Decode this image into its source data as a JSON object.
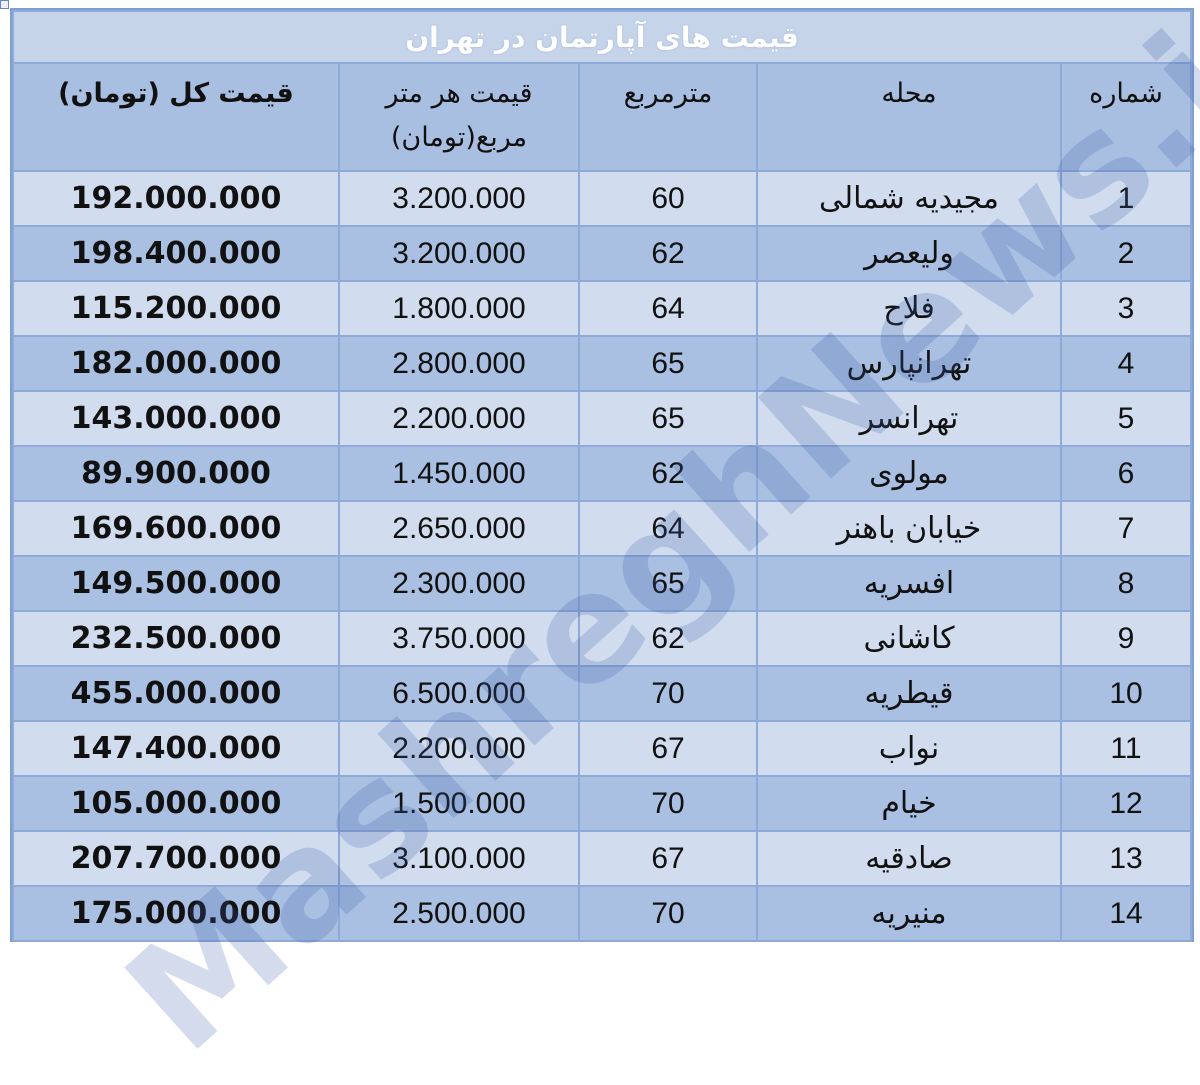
{
  "title": "قیمت های آپارتمان در تهران",
  "headers": {
    "number": "شماره",
    "neighborhood": "محله",
    "area": "مترمربع",
    "price_per_meter": "قیمت هر متر مربع(تومان)",
    "total_price": "قیمت کل (تومان)"
  },
  "rows": [
    {
      "number": "1",
      "neighborhood": "مجیدیه شمالی",
      "area": "60",
      "price_per_meter": "3.200.000",
      "total_price": "192.000.000"
    },
    {
      "number": "2",
      "neighborhood": "ولیعصر",
      "area": "62",
      "price_per_meter": "3.200.000",
      "total_price": "198.400.000"
    },
    {
      "number": "3",
      "neighborhood": "فلاح",
      "area": "64",
      "price_per_meter": "1.800.000",
      "total_price": "115.200.000"
    },
    {
      "number": "4",
      "neighborhood": "تهرانپارس",
      "area": "65",
      "price_per_meter": "2.800.000",
      "total_price": "182.000.000"
    },
    {
      "number": "5",
      "neighborhood": "تهرانسر",
      "area": "65",
      "price_per_meter": "2.200.000",
      "total_price": "143.000.000"
    },
    {
      "number": "6",
      "neighborhood": "مولوی",
      "area": "62",
      "price_per_meter": "1.450.000",
      "total_price": "89.900.000"
    },
    {
      "number": "7",
      "neighborhood": "خیابان باهنر",
      "area": "64",
      "price_per_meter": "2.650.000",
      "total_price": "169.600.000"
    },
    {
      "number": "8",
      "neighborhood": "افسریه",
      "area": "65",
      "price_per_meter": "2.300.000",
      "total_price": "149.500.000"
    },
    {
      "number": "9",
      "neighborhood": "کاشانی",
      "area": "62",
      "price_per_meter": "3.750.000",
      "total_price": "232.500.000"
    },
    {
      "number": "10",
      "neighborhood": "قیطریه",
      "area": "70",
      "price_per_meter": "6.500.000",
      "total_price": "455.000.000"
    },
    {
      "number": "11",
      "neighborhood": "نواب",
      "area": "67",
      "price_per_meter": "2.200.000",
      "total_price": "147.400.000"
    },
    {
      "number": "12",
      "neighborhood": "خیام",
      "area": "70",
      "price_per_meter": "1.500.000",
      "total_price": "105.000.000"
    },
    {
      "number": "13",
      "neighborhood": "صادقیه",
      "area": "67",
      "price_per_meter": "3.100.000",
      "total_price": "207.700.000"
    },
    {
      "number": "14",
      "neighborhood": "منیریه",
      "area": "70",
      "price_per_meter": "2.500.000",
      "total_price": "175.000.000"
    }
  ],
  "watermark": "MashreghNews.ir",
  "colors": {
    "title_bg": "#c6d4ea",
    "header_bg": "#a8bfe2",
    "row_light": "#d1ddef",
    "row_dark": "#a9c0e2",
    "border": "#8eaad8"
  }
}
